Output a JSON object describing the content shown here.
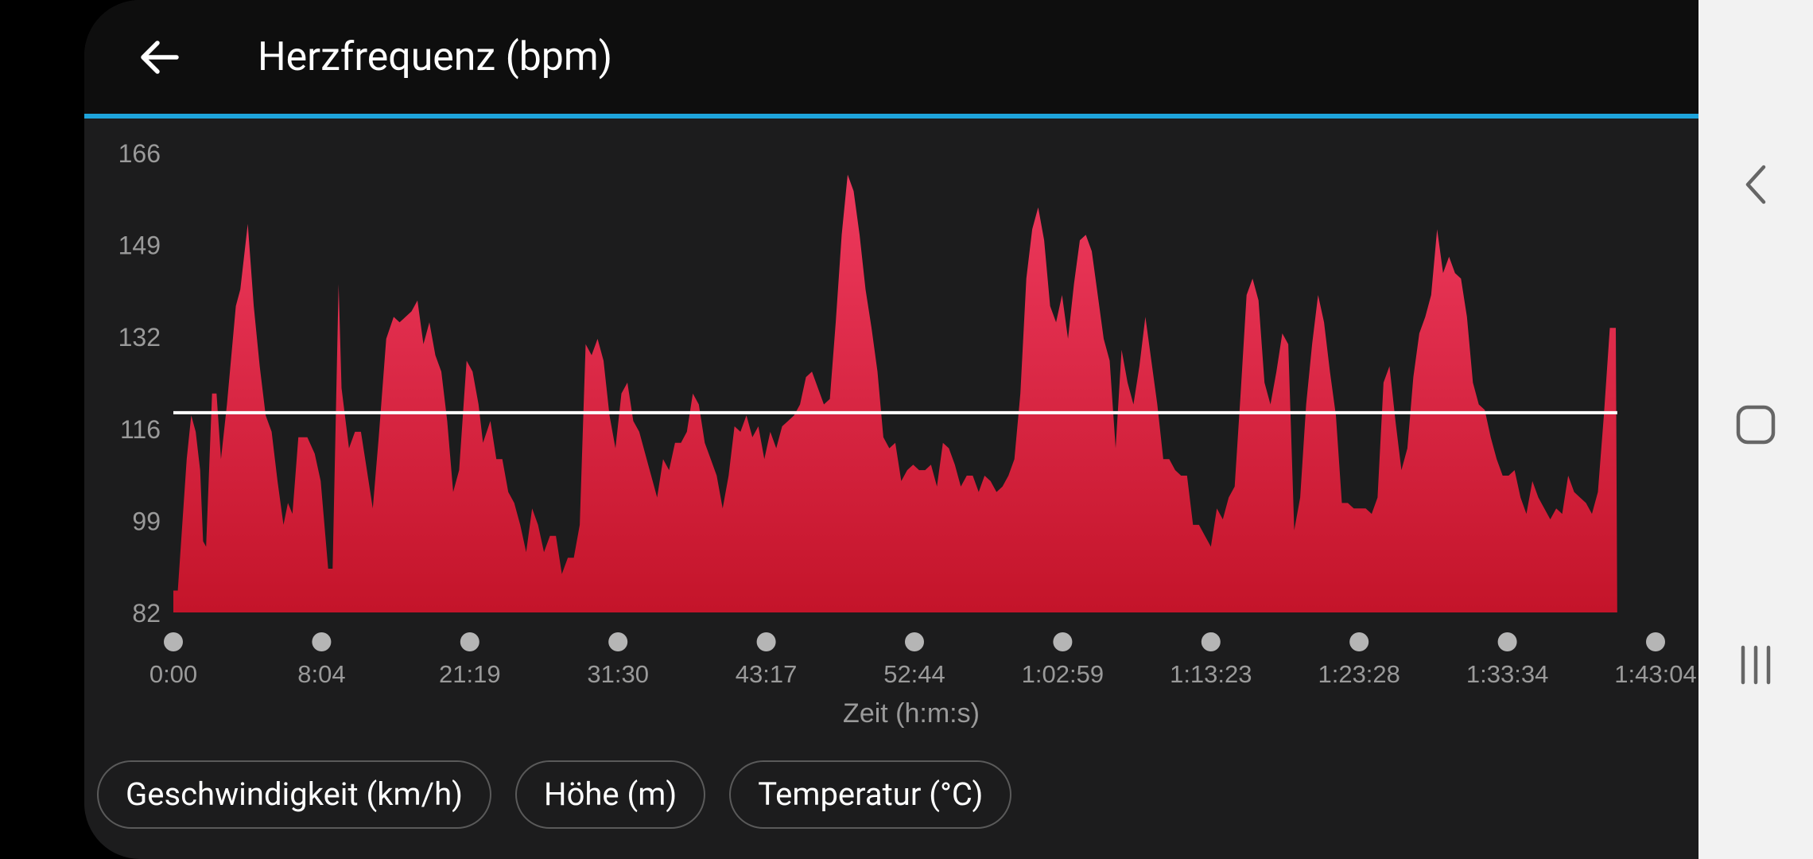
{
  "header": {
    "title": "Herzfrequenz (bpm)",
    "back_icon": "arrow-left-icon"
  },
  "colors": {
    "app_background": "#1c1c1d",
    "header_background": "#0e0e0e",
    "accent": "#1ea4dc",
    "area_top": "#ee3a5e",
    "area_bottom": "#c4142a",
    "average_line": "#ffffff"
  },
  "chart_data": {
    "type": "area",
    "ylabel": "",
    "xlabel": "Zeit (h:m:s)",
    "yticks": [
      "166",
      "149",
      "132",
      "116",
      "99",
      "82"
    ],
    "ylim": [
      82,
      166
    ],
    "xticks": [
      "0:00",
      "8:04",
      "21:19",
      "31:30",
      "43:17",
      "52:44",
      "1:02:59",
      "1:13:23",
      "1:23:28",
      "1:33:34",
      "1:43:04"
    ],
    "xlim": [
      0,
      100
    ],
    "average": 118.5,
    "grid": false,
    "series": [
      {
        "values": [
          [
            0,
            86
          ],
          [
            0.3,
            86
          ],
          [
            0.6,
            98
          ],
          [
            0.9,
            110
          ],
          [
            1.2,
            118
          ],
          [
            1.5,
            115
          ],
          [
            1.8,
            108
          ],
          [
            2.0,
            95
          ],
          [
            2.2,
            94
          ],
          [
            2.6,
            122
          ],
          [
            2.9,
            122
          ],
          [
            3.2,
            110
          ],
          [
            3.6,
            120
          ],
          [
            4.2,
            138
          ],
          [
            4.5,
            141
          ],
          [
            5.0,
            153
          ],
          [
            5.4,
            138
          ],
          [
            5.8,
            127
          ],
          [
            6.2,
            118
          ],
          [
            6.6,
            115
          ],
          [
            7.0,
            106
          ],
          [
            7.4,
            98
          ],
          [
            7.7,
            102
          ],
          [
            8.0,
            100
          ],
          [
            8.4,
            114
          ],
          [
            9.0,
            114
          ],
          [
            9.5,
            111
          ],
          [
            9.9,
            106
          ],
          [
            10.4,
            90
          ],
          [
            10.7,
            90
          ],
          [
            11.1,
            142
          ],
          [
            11.3,
            123
          ],
          [
            11.8,
            112
          ],
          [
            12.2,
            115
          ],
          [
            12.6,
            115
          ],
          [
            13.0,
            108
          ],
          [
            13.4,
            101
          ],
          [
            13.8,
            114
          ],
          [
            14.3,
            132
          ],
          [
            14.8,
            136
          ],
          [
            15.2,
            135
          ],
          [
            15.6,
            136
          ],
          [
            16.0,
            137
          ],
          [
            16.4,
            139
          ],
          [
            16.8,
            131
          ],
          [
            17.2,
            135
          ],
          [
            17.6,
            129
          ],
          [
            18.0,
            126
          ],
          [
            18.4,
            117
          ],
          [
            18.8,
            104
          ],
          [
            19.2,
            108
          ],
          [
            19.7,
            128
          ],
          [
            20.1,
            126
          ],
          [
            20.5,
            120
          ],
          [
            20.8,
            113
          ],
          [
            21.3,
            117
          ],
          [
            21.7,
            110
          ],
          [
            22.1,
            110
          ],
          [
            22.5,
            104
          ],
          [
            22.9,
            102
          ],
          [
            23.3,
            98
          ],
          [
            23.7,
            93
          ],
          [
            24.1,
            101
          ],
          [
            24.5,
            98
          ],
          [
            24.9,
            93
          ],
          [
            25.3,
            96
          ],
          [
            25.7,
            96
          ],
          [
            26.1,
            89
          ],
          [
            26.5,
            92
          ],
          [
            26.9,
            92
          ],
          [
            27.3,
            98
          ],
          [
            27.7,
            131
          ],
          [
            28.1,
            129
          ],
          [
            28.5,
            132
          ],
          [
            28.9,
            128
          ],
          [
            29.3,
            118
          ],
          [
            29.7,
            112
          ],
          [
            30.1,
            122
          ],
          [
            30.5,
            124
          ],
          [
            30.9,
            117
          ],
          [
            31.3,
            115
          ],
          [
            31.7,
            111
          ],
          [
            32.1,
            107
          ],
          [
            32.5,
            103
          ],
          [
            32.9,
            110
          ],
          [
            33.3,
            108
          ],
          [
            33.7,
            113
          ],
          [
            34.1,
            113
          ],
          [
            34.5,
            115
          ],
          [
            34.9,
            122
          ],
          [
            35.3,
            120
          ],
          [
            35.7,
            113
          ],
          [
            36.1,
            110
          ],
          [
            36.5,
            107
          ],
          [
            36.9,
            101
          ],
          [
            37.3,
            107
          ],
          [
            37.7,
            116
          ],
          [
            38.1,
            115
          ],
          [
            38.5,
            118
          ],
          [
            38.9,
            114
          ],
          [
            39.3,
            116
          ],
          [
            39.7,
            110
          ],
          [
            40.1,
            115
          ],
          [
            40.5,
            112
          ],
          [
            40.9,
            116
          ],
          [
            41.3,
            117
          ],
          [
            41.7,
            118
          ],
          [
            42.1,
            120
          ],
          [
            42.5,
            125
          ],
          [
            42.9,
            126
          ],
          [
            43.3,
            123
          ],
          [
            43.7,
            120
          ],
          [
            44.1,
            121
          ],
          [
            44.5,
            135
          ],
          [
            44.9,
            151
          ],
          [
            45.3,
            162
          ],
          [
            45.7,
            159
          ],
          [
            46.1,
            151
          ],
          [
            46.5,
            141
          ],
          [
            46.9,
            134
          ],
          [
            47.3,
            126
          ],
          [
            47.7,
            114
          ],
          [
            48.1,
            112
          ],
          [
            48.5,
            113
          ],
          [
            48.9,
            106
          ],
          [
            49.3,
            108
          ],
          [
            49.7,
            109
          ],
          [
            50.1,
            108
          ],
          [
            50.5,
            108
          ],
          [
            50.9,
            109
          ],
          [
            51.3,
            105
          ],
          [
            51.7,
            113
          ],
          [
            52.1,
            112
          ],
          [
            52.5,
            109
          ],
          [
            52.9,
            105
          ],
          [
            53.3,
            107
          ],
          [
            53.7,
            107
          ],
          [
            54.1,
            104
          ],
          [
            54.5,
            107
          ],
          [
            54.9,
            106
          ],
          [
            55.3,
            104
          ],
          [
            55.7,
            105
          ],
          [
            56.1,
            107
          ],
          [
            56.5,
            110
          ],
          [
            56.9,
            122
          ],
          [
            57.3,
            143
          ],
          [
            57.7,
            152
          ],
          [
            58.1,
            156
          ],
          [
            58.5,
            150
          ],
          [
            58.9,
            138
          ],
          [
            59.3,
            135
          ],
          [
            59.7,
            140
          ],
          [
            60.1,
            132
          ],
          [
            60.5,
            142
          ],
          [
            60.9,
            150
          ],
          [
            61.3,
            151
          ],
          [
            61.7,
            148
          ],
          [
            62.1,
            140
          ],
          [
            62.5,
            132
          ],
          [
            62.9,
            128
          ],
          [
            63.3,
            112
          ],
          [
            63.7,
            130
          ],
          [
            64.1,
            124
          ],
          [
            64.5,
            120
          ],
          [
            64.9,
            127
          ],
          [
            65.3,
            136
          ],
          [
            65.7,
            128
          ],
          [
            66.1,
            120
          ],
          [
            66.5,
            110
          ],
          [
            66.9,
            110
          ],
          [
            67.3,
            108
          ],
          [
            67.7,
            107
          ],
          [
            68.1,
            107
          ],
          [
            68.5,
            98
          ],
          [
            68.9,
            98
          ],
          [
            69.3,
            96
          ],
          [
            69.7,
            94
          ],
          [
            70.1,
            101
          ],
          [
            70.5,
            99
          ],
          [
            70.9,
            103
          ],
          [
            71.3,
            105
          ],
          [
            71.7,
            122
          ],
          [
            72.1,
            140
          ],
          [
            72.5,
            143
          ],
          [
            72.9,
            139
          ],
          [
            73.3,
            124
          ],
          [
            73.7,
            120
          ],
          [
            74.1,
            126
          ],
          [
            74.5,
            133
          ],
          [
            74.9,
            131
          ],
          [
            75.3,
            97
          ],
          [
            75.7,
            103
          ],
          [
            76.1,
            120
          ],
          [
            76.5,
            131
          ],
          [
            76.9,
            140
          ],
          [
            77.3,
            135
          ],
          [
            77.7,
            126
          ],
          [
            78.1,
            118
          ],
          [
            78.5,
            102
          ],
          [
            78.9,
            102
          ],
          [
            79.3,
            101
          ],
          [
            79.7,
            101
          ],
          [
            80.1,
            101
          ],
          [
            80.5,
            100
          ],
          [
            80.9,
            103
          ],
          [
            81.3,
            124
          ],
          [
            81.7,
            127
          ],
          [
            82.1,
            117
          ],
          [
            82.5,
            108
          ],
          [
            82.9,
            112
          ],
          [
            83.3,
            125
          ],
          [
            83.7,
            133
          ],
          [
            84.1,
            136
          ],
          [
            84.5,
            140
          ],
          [
            84.9,
            152
          ],
          [
            85.3,
            144
          ],
          [
            85.7,
            147
          ],
          [
            86.1,
            144
          ],
          [
            86.5,
            143
          ],
          [
            86.9,
            136
          ],
          [
            87.3,
            124
          ],
          [
            87.7,
            120
          ],
          [
            88.1,
            119
          ],
          [
            88.5,
            114
          ],
          [
            88.9,
            110
          ],
          [
            89.3,
            107
          ],
          [
            89.7,
            107
          ],
          [
            90.1,
            108
          ],
          [
            90.5,
            103
          ],
          [
            90.9,
            100
          ],
          [
            91.3,
            106
          ],
          [
            91.7,
            103
          ],
          [
            92.1,
            101
          ],
          [
            92.5,
            99
          ],
          [
            92.9,
            101
          ],
          [
            93.3,
            100
          ],
          [
            93.7,
            107
          ],
          [
            94.1,
            104
          ],
          [
            94.5,
            103
          ],
          [
            94.9,
            102
          ],
          [
            95.3,
            100
          ],
          [
            95.7,
            104
          ],
          [
            96.1,
            118
          ],
          [
            96.5,
            134
          ],
          [
            96.9,
            134
          ],
          [
            97.0,
            82
          ]
        ]
      }
    ]
  },
  "chips": [
    {
      "label": "Geschwindigkeit (km/h)"
    },
    {
      "label": "Höhe (m)"
    },
    {
      "label": "Temperatur (°C)"
    }
  ],
  "nav": {
    "back_icon": "nav-back-icon",
    "home_icon": "nav-home-icon",
    "recents_icon": "nav-recents-icon"
  }
}
